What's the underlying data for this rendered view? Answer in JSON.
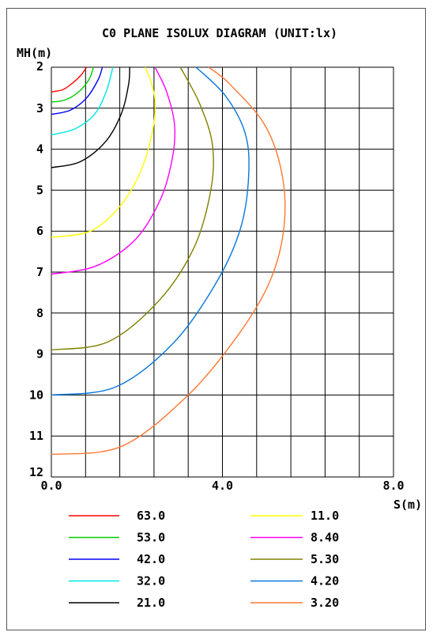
{
  "chart_data": {
    "type": "line",
    "title": "C0 PLANE ISOLUX DIAGRAM (UNIT:lx)",
    "ylabel": "MH(m)",
    "xlabel": "S(m)",
    "xlim": [
      0,
      10
    ],
    "ylim": [
      2,
      12
    ],
    "y_inverted": true,
    "grid": true,
    "x_tick_labels": [
      {
        "value": 0,
        "label": "0.0"
      },
      {
        "value": 5,
        "label": "4.0"
      },
      {
        "value": 10,
        "label": "8.0"
      }
    ],
    "y_ticks": [
      2,
      3,
      4,
      5,
      6,
      7,
      8,
      9,
      10,
      11,
      12
    ],
    "legend_placement": "bottom",
    "series": [
      {
        "name": "63.0",
        "color": "#ff0000",
        "points": [
          [
            0,
            2.6
          ],
          [
            0.33,
            2.55
          ],
          [
            0.6,
            2.4
          ],
          [
            0.86,
            2.2
          ],
          [
            1.03,
            2.0
          ]
        ]
      },
      {
        "name": "53.0",
        "color": "#00cc00",
        "points": [
          [
            0,
            2.85
          ],
          [
            0.4,
            2.8
          ],
          [
            0.8,
            2.6
          ],
          [
            1.1,
            2.3
          ],
          [
            1.23,
            2.0
          ]
        ]
      },
      {
        "name": "42.0",
        "color": "#0000ff",
        "points": [
          [
            0,
            3.15
          ],
          [
            0.55,
            3.05
          ],
          [
            1.03,
            2.75
          ],
          [
            1.37,
            2.3
          ],
          [
            1.49,
            2.0
          ]
        ]
      },
      {
        "name": "32.0",
        "color": "#00e5e5",
        "points": [
          [
            0,
            3.65
          ],
          [
            0.7,
            3.5
          ],
          [
            1.26,
            3.15
          ],
          [
            1.6,
            2.6
          ],
          [
            1.8,
            2.0
          ]
        ]
      },
      {
        "name": "21.0",
        "color": "#000000",
        "points": [
          [
            0,
            4.45
          ],
          [
            0.86,
            4.3
          ],
          [
            1.6,
            3.8
          ],
          [
            2.06,
            3.1
          ],
          [
            2.26,
            2.4
          ],
          [
            2.29,
            2.0
          ]
        ]
      },
      {
        "name": "11.0",
        "color": "#ffff00",
        "points": [
          [
            0,
            6.15
          ],
          [
            1.14,
            6.0
          ],
          [
            2.0,
            5.4
          ],
          [
            2.63,
            4.5
          ],
          [
            2.97,
            3.5
          ],
          [
            3.03,
            2.8
          ],
          [
            2.89,
            2.3
          ],
          [
            2.74,
            2.0
          ]
        ]
      },
      {
        "name": "8.40",
        "color": "#ff00ff",
        "points": [
          [
            0,
            7.05
          ],
          [
            1.31,
            6.85
          ],
          [
            2.46,
            6.2
          ],
          [
            3.2,
            5.2
          ],
          [
            3.54,
            4.2
          ],
          [
            3.6,
            3.4
          ],
          [
            3.37,
            2.6
          ],
          [
            3.03,
            2.0
          ]
        ]
      },
      {
        "name": "5.30",
        "color": "#808000",
        "points": [
          [
            0,
            8.9
          ],
          [
            1.66,
            8.7
          ],
          [
            3.14,
            7.7
          ],
          [
            4.17,
            6.4
          ],
          [
            4.66,
            5.0
          ],
          [
            4.71,
            3.9
          ],
          [
            4.34,
            2.9
          ],
          [
            3.77,
            2.0
          ]
        ]
      },
      {
        "name": "4.20",
        "color": "#0a78dc",
        "points": [
          [
            0,
            10.0
          ],
          [
            1.89,
            9.8
          ],
          [
            3.6,
            8.7
          ],
          [
            4.86,
            7.2
          ],
          [
            5.54,
            5.9
          ],
          [
            5.77,
            4.6
          ],
          [
            5.66,
            3.6
          ],
          [
            5.09,
            2.7
          ],
          [
            4.23,
            2.0
          ]
        ]
      },
      {
        "name": "3.20",
        "color": "#ff7832",
        "points": [
          [
            0,
            11.45
          ],
          [
            2.06,
            11.25
          ],
          [
            4.0,
            10.0
          ],
          [
            5.49,
            8.5
          ],
          [
            6.4,
            7.2
          ],
          [
            6.8,
            5.9
          ],
          [
            6.74,
            4.6
          ],
          [
            6.23,
            3.4
          ],
          [
            5.2,
            2.4
          ],
          [
            4.6,
            2.0
          ]
        ]
      }
    ]
  }
}
